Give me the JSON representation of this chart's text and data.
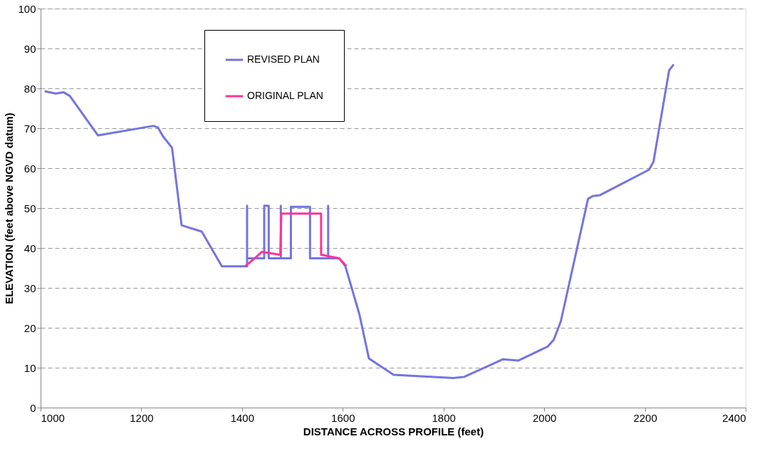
{
  "chart_data": {
    "type": "line",
    "xlabel": "DISTANCE ACROSS PROFILE (feet)",
    "ylabel": "ELEVATION (feet above NGVD datum)",
    "xlim": [
      1000,
      2400
    ],
    "xticks": [
      1000,
      1200,
      1400,
      1600,
      1800,
      2000,
      2200,
      2400
    ],
    "ylim": [
      0,
      100
    ],
    "yticks": [
      0,
      10,
      20,
      30,
      40,
      50,
      60,
      70,
      80,
      90,
      100
    ],
    "grid": "y",
    "legend": "top left",
    "line_style": "solid",
    "marker": "none",
    "series": [
      {
        "name": "REVISED PLAN",
        "color": "#7474e0",
        "x": [
          1008,
          1030,
          1046,
          1058,
          1114,
          1224,
          1233,
          1243,
          1261,
          1280,
          1320,
          1360,
          1410,
          1410,
          1410,
          1444,
          1444,
          1453,
          1453,
          1477,
          1477,
          1477,
          1497,
          1497,
          1535,
          1535,
          1571,
          1571,
          1571,
          1593,
          1605,
          1633,
          1652,
          1701,
          1820,
          1841,
          1918,
          1949,
          2007,
          2019,
          2033,
          2087,
          2096,
          2110,
          2208,
          2217,
          2248,
          2257
        ],
        "values": [
          79.3,
          78.7,
          79.0,
          78.1,
          68.2,
          70.6,
          70.2,
          68.0,
          65.1,
          45.7,
          44.1,
          35.4,
          35.4,
          50.6,
          37.4,
          37.4,
          50.6,
          50.6,
          37.4,
          37.4,
          50.6,
          37.4,
          37.4,
          50.3,
          50.3,
          37.4,
          37.4,
          50.6,
          37.4,
          37.4,
          35.5,
          23.4,
          12.3,
          8.2,
          7.4,
          7.7,
          12.1,
          11.8,
          15.3,
          17.0,
          21.6,
          52.3,
          53.0,
          53.2,
          59.6,
          61.6,
          84.5,
          86.0
        ]
      },
      {
        "name": "ORIGINAL PLAN",
        "color": "#ff3399",
        "x": [
          1406,
          1425,
          1439,
          1476,
          1478,
          1557,
          1557,
          1593,
          1607
        ],
        "values": [
          35.4,
          37.4,
          39.0,
          38.3,
          48.6,
          48.6,
          38.3,
          37.4,
          35.5
        ]
      }
    ]
  }
}
